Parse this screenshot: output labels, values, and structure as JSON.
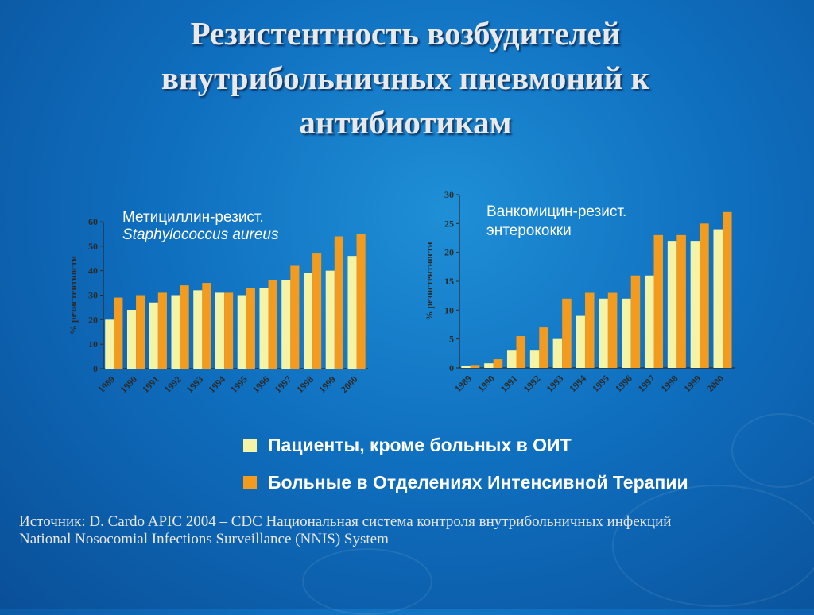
{
  "title_lines": [
    "Резистентность возбудителей",
    "внутрибольничных пневмоний к",
    "антибиотикам"
  ],
  "colors": {
    "non_icu": "#f5f3a6",
    "icu": "#f39b1f",
    "axis": "#2b2b2b",
    "chart_label": "#ffffff"
  },
  "chart_data": [
    {
      "type": "bar",
      "title": "Метициллин-резист.",
      "subtitle": "Staphylococcus aureus",
      "ylabel": "% резистентности",
      "categories": [
        "1989",
        "1990",
        "1991",
        "1992",
        "1993",
        "1994",
        "1995",
        "1996",
        "1997",
        "1998",
        "1999",
        "2000"
      ],
      "ylim": [
        0,
        60
      ],
      "yticks": [
        0,
        10,
        20,
        30,
        40,
        50,
        60
      ],
      "series": [
        {
          "name": "Пациенты, кроме больных в ОИТ",
          "values": [
            20,
            24,
            27,
            30,
            32,
            31,
            30,
            33,
            36,
            39,
            40,
            46
          ]
        },
        {
          "name": "Больные в Отделениях Интенсивной Терапии",
          "values": [
            29,
            30,
            31,
            34,
            35,
            31,
            33,
            36,
            42,
            47,
            54,
            55
          ]
        }
      ],
      "grid": false
    },
    {
      "type": "bar",
      "title": "Ванкомицин-резист.",
      "subtitle": "энтерококки",
      "ylabel": "% резистентности",
      "categories": [
        "1989",
        "1990",
        "1991",
        "1992",
        "1993",
        "1994",
        "1995",
        "1996",
        "1997",
        "1998",
        "1999",
        "2000"
      ],
      "ylim": [
        0,
        30
      ],
      "yticks": [
        0,
        5,
        10,
        15,
        20,
        25,
        30
      ],
      "series": [
        {
          "name": "Пациенты, кроме больных в ОИТ",
          "values": [
            0.3,
            0.8,
            3,
            3,
            5,
            9,
            12,
            12,
            16,
            22,
            22,
            24
          ]
        },
        {
          "name": "Больные в Отделениях Интенсивной Терапии",
          "values": [
            0.5,
            1.5,
            5.5,
            7,
            12,
            13,
            13,
            16,
            23,
            23,
            25,
            27
          ]
        }
      ],
      "grid": false
    }
  ],
  "legend": [
    {
      "label": "Пациенты, кроме больных в ОИТ"
    },
    {
      "label": "Больные в Отделениях Интенсивной Терапии"
    }
  ],
  "source": {
    "line1": "Источник: D. Cardo APIC 2004 – CDC Национальная система контроля внутрибольничных инфекций",
    "line2": "National Nosocomial Infections Surveillance (NNIS) System"
  }
}
